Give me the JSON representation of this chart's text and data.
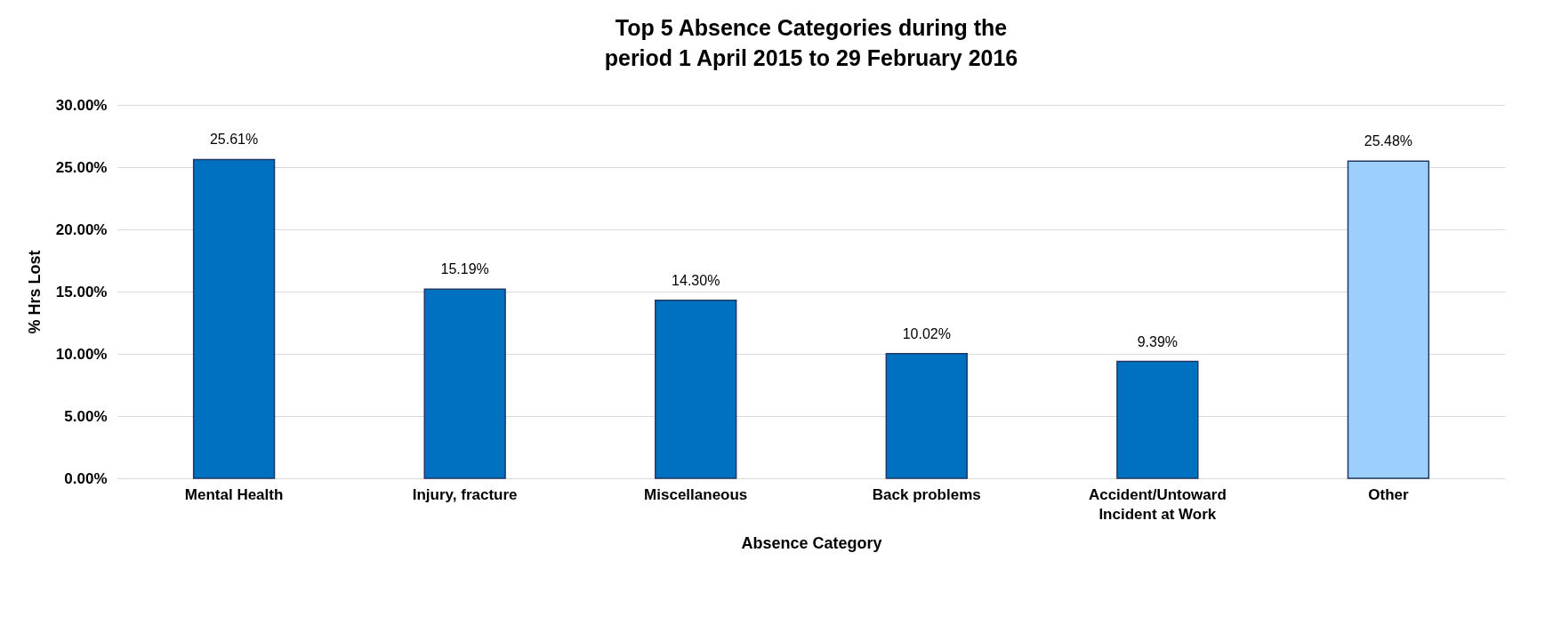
{
  "chart_data": {
    "type": "bar",
    "title": "Top 5 Absence Categories during the period 1 April 2015 to 29 February 2016",
    "xlabel": "Absence Category",
    "ylabel": "% Hrs Lost",
    "categories": [
      "Mental Health",
      "Injury, fracture",
      "Miscellaneous",
      "Back problems",
      "Accident/Untoward Incident at Work",
      "Other"
    ],
    "values": [
      25.61,
      15.19,
      14.3,
      10.02,
      9.39,
      25.48
    ],
    "value_labels": [
      "25.61%",
      "15.19%",
      "14.30%",
      "10.02%",
      "9.39%",
      "25.48%"
    ],
    "colors": [
      "#0070c0",
      "#0070c0",
      "#0070c0",
      "#0070c0",
      "#0070c0",
      "#9dcffc"
    ],
    "ylim": [
      0,
      30
    ],
    "yticks": [
      {
        "value": 0,
        "label": "0.00%"
      },
      {
        "value": 5,
        "label": "5.00%"
      },
      {
        "value": 10,
        "label": "10.00%"
      },
      {
        "value": 15,
        "label": "15.00%"
      },
      {
        "value": 20,
        "label": "20.00%"
      },
      {
        "value": 25,
        "label": "25.00%"
      },
      {
        "value": 30,
        "label": "30.00%"
      }
    ],
    "grid": "y"
  }
}
